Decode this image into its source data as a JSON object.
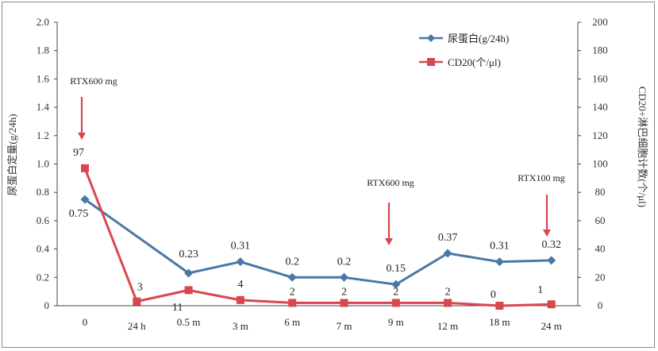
{
  "chart_data": {
    "type": "line",
    "categories": [
      "0",
      "24 h",
      "0.5 m",
      "3 m",
      "6 m",
      "7 m",
      "9 m",
      "12 m",
      "18 m",
      "24 m"
    ],
    "series": [
      {
        "name": "尿蛋白(g/24h)",
        "axis": "left",
        "color": "#4a77a8",
        "marker": "diamond",
        "values": [
          0.75,
          null,
          0.23,
          0.31,
          0.2,
          0.2,
          0.15,
          0.37,
          0.31,
          0.32
        ],
        "labels": [
          "0.75",
          "",
          "0.23",
          "0.31",
          "0.2",
          "0.2",
          "0.15",
          "0.37",
          "0.31",
          "0.32"
        ]
      },
      {
        "name": "CD20(个/μl)",
        "axis": "right",
        "color": "#d9474e",
        "marker": "square",
        "values": [
          97,
          3,
          11,
          4,
          2,
          2,
          2,
          2,
          0,
          1
        ],
        "labels": [
          "97",
          "3",
          "11",
          "4",
          "2",
          "2",
          "2",
          "2",
          "0",
          "1"
        ]
      }
    ],
    "ylabel": "尿蛋白定量(g/24h)",
    "y2label": "CD20+淋巴细胞计数(个/μl)",
    "ylim": [
      0,
      2.0
    ],
    "y2lim": [
      0,
      200
    ],
    "yticks": [
      "0",
      "0.2",
      "0.4",
      "0.6",
      "0.8",
      "1.0",
      "1.2",
      "1.4",
      "1.6",
      "1.8",
      "2.0"
    ],
    "y2ticks": [
      "0",
      "20",
      "40",
      "60",
      "80",
      "100",
      "120",
      "140",
      "160",
      "180",
      "200"
    ],
    "legend": "top-right",
    "grid": false,
    "annotations": [
      {
        "text": "RTX600 mg",
        "category": "0"
      },
      {
        "text": "RTX600 mg",
        "category": "9 m"
      },
      {
        "text": "RTX100 mg",
        "category": "24 m"
      }
    ]
  }
}
